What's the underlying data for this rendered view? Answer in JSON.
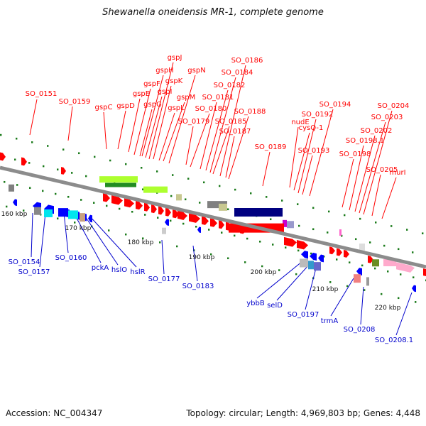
{
  "title": "Shewanella oneidensis MR-1, complete genome",
  "footer": {
    "accession": "Accession: NC_004347",
    "topology": "Topology: circular; Length: 4,969,803 bp; Genes: 4,448"
  },
  "colors": {
    "backbone": "#8c8c8c",
    "forward_label": "#ff0000",
    "reverse_label": "#0000cc",
    "tick": "#1a7a1a"
  },
  "kbp_labels": [
    "160 kbp",
    "170 kbp",
    "180 kbp",
    "190 kbp",
    "200 kbp",
    "210 kbp",
    "220 kbp"
  ],
  "top_labels": [
    "SO_0151",
    "SO_0159",
    "gspC",
    "gspD",
    "gspE",
    "gspF",
    "gspG",
    "gspH",
    "gspI",
    "gspJ",
    "gspK",
    "gspL",
    "gspM",
    "gspN",
    "SO_0179",
    "SO_0180",
    "SO_0181",
    "SO_0182",
    "SO_0184",
    "SO_0185",
    "SO_0186",
    "SO_0187",
    "SO_0188",
    "SO_0189",
    "nudE",
    "cysQ-1",
    "SO_0192",
    "SO_0193",
    "SO_0194",
    "SO_0198",
    "SO_0198.1",
    "SO_0202",
    "SO_0203",
    "SO_0204",
    "SO_0205",
    "murI"
  ],
  "bottom_labels": [
    "SO_0154",
    "SO_0157",
    "SO_0160",
    "pckA",
    "hslO",
    "hslR",
    "SO_0177",
    "SO_0183",
    "ybbB",
    "selD",
    "SO_0197",
    "trmA",
    "SO_0208",
    "SO_0208.1"
  ]
}
